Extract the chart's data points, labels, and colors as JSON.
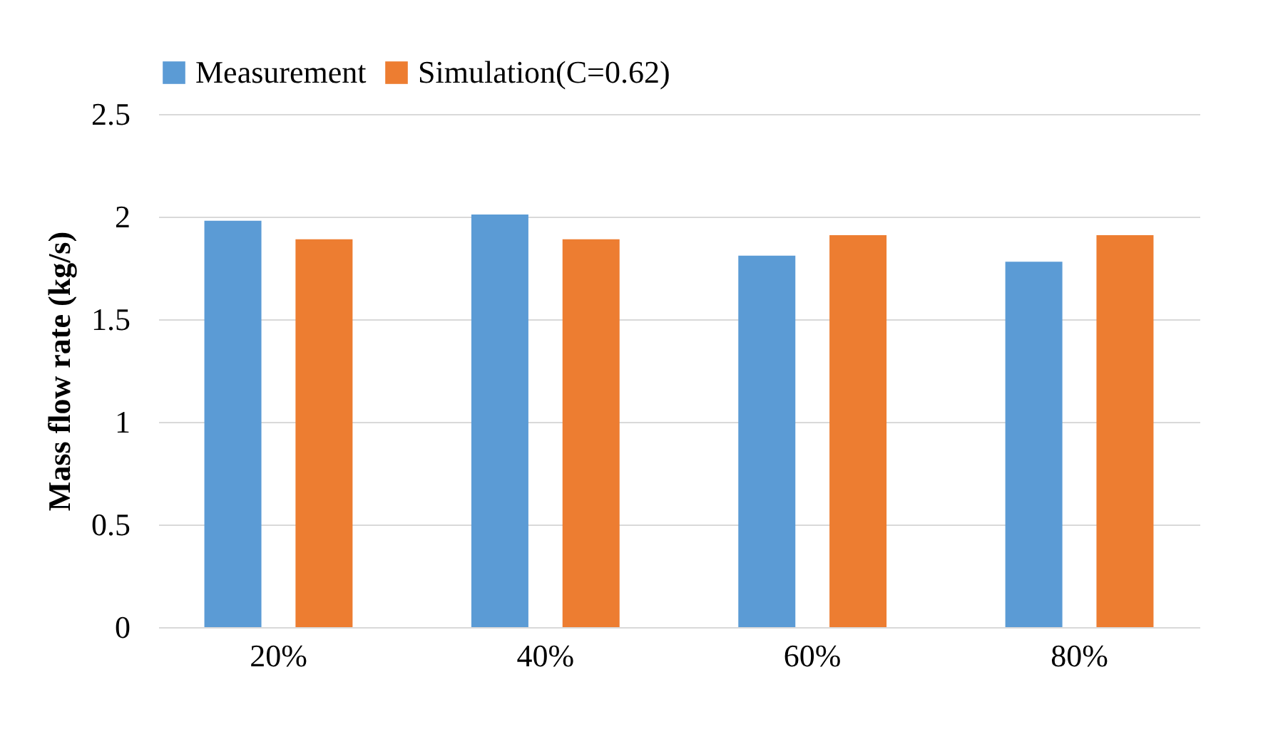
{
  "chart_data": {
    "type": "bar",
    "ylabel": "Mass flow rate (kg/s)",
    "categories": [
      "20%",
      "40%",
      "60%",
      "80%"
    ],
    "series": [
      {
        "name": "Measurement",
        "color": "#5b9bd5",
        "values": [
          1.98,
          2.01,
          1.81,
          1.78
        ]
      },
      {
        "name": "Simulation(C=0.62)",
        "color": "#ed7d31",
        "values": [
          1.89,
          1.89,
          1.91,
          1.91
        ]
      }
    ],
    "ylim": [
      0,
      2.5
    ],
    "yticks": [
      0,
      0.5,
      1,
      1.5,
      2,
      2.5
    ],
    "grid": "y",
    "legend": "top"
  }
}
